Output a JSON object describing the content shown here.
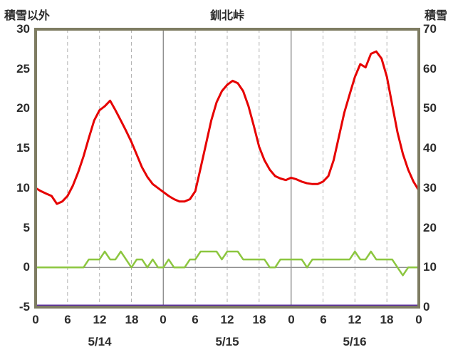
{
  "chart_data": {
    "type": "line",
    "title": "釧北峠",
    "left_axis": {
      "label": "積雪以外",
      "min": -5,
      "max": 30,
      "tick_interval": 5,
      "ticks": [
        30,
        25,
        20,
        15,
        10,
        5,
        0,
        -5
      ]
    },
    "right_axis": {
      "label": "積雪",
      "min": 0,
      "max": 70,
      "tick_interval": 10,
      "ticks": [
        70,
        60,
        50,
        40,
        30,
        20,
        10,
        0
      ]
    },
    "x_axis": {
      "hours_total": 72,
      "tick_step": 6,
      "tick_labels": [
        "0",
        "6",
        "12",
        "18",
        "0",
        "6",
        "12",
        "18",
        "0",
        "6",
        "12",
        "18",
        "0"
      ],
      "day_labels": [
        "5/14",
        "5/15",
        "5/16"
      ],
      "day_boundaries": [
        24,
        48
      ]
    },
    "grid": {
      "vertical_dashed_every_6h": true,
      "solid_day_boundaries": true,
      "solid_zero_line": true,
      "legend": "none"
    },
    "series": [
      {
        "name": "red-line",
        "color": "#e60000",
        "axis": "left",
        "stroke_width": 3,
        "values": [
          10.0,
          9.6,
          9.3,
          9.0,
          8.0,
          8.3,
          9.0,
          10.3,
          12.0,
          14.0,
          16.3,
          18.5,
          19.8,
          20.3,
          21.0,
          19.8,
          18.5,
          17.2,
          15.8,
          14.2,
          12.6,
          11.4,
          10.5,
          10.0,
          9.5,
          9.0,
          8.6,
          8.3,
          8.3,
          8.6,
          9.6,
          12.5,
          15.5,
          18.5,
          20.8,
          22.2,
          23.0,
          23.5,
          23.2,
          22.2,
          20.3,
          17.8,
          15.2,
          13.5,
          12.3,
          11.5,
          11.2,
          11.0,
          11.3,
          11.1,
          10.8,
          10.6,
          10.5,
          10.5,
          10.8,
          11.5,
          13.5,
          16.5,
          19.5,
          21.8,
          24.0,
          25.6,
          25.2,
          26.9,
          27.2,
          26.3,
          24.0,
          20.5,
          17.0,
          14.3,
          12.3,
          10.8,
          9.7
        ]
      },
      {
        "name": "green-line",
        "color": "#8cc63f",
        "axis": "left",
        "stroke_width": 2.5,
        "values": [
          0,
          0,
          0,
          0,
          0,
          0,
          0,
          0,
          0,
          0,
          1,
          1,
          1,
          2,
          1,
          1,
          2,
          1,
          0,
          1,
          1,
          0,
          1,
          0,
          0,
          1,
          0,
          0,
          0,
          1,
          1,
          2,
          2,
          2,
          2,
          1,
          2,
          2,
          2,
          1,
          1,
          1,
          1,
          1,
          0,
          0,
          1,
          1,
          1,
          1,
          1,
          0,
          1,
          1,
          1,
          1,
          1,
          1,
          1,
          1,
          2,
          1,
          1,
          2,
          1,
          1,
          1,
          1,
          0,
          -1,
          0,
          0,
          0
        ]
      },
      {
        "name": "snow-depth-purple-line",
        "color": "#5b2da0",
        "axis": "right",
        "stroke_width": 3,
        "constant": 0
      }
    ]
  }
}
